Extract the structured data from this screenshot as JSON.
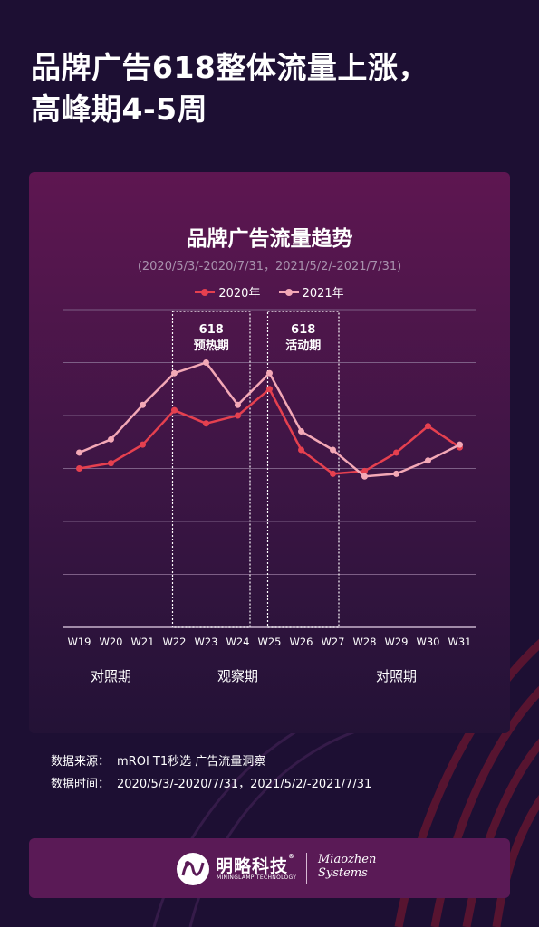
{
  "headline": {
    "line1": "品牌广告618整体流量上涨，",
    "line2": "高峰期4-5周"
  },
  "colors": {
    "series_2020": "#e5404f",
    "series_2021": "#f3a8b6",
    "grid": "#7d5f86",
    "highlight_box": "#ffffff"
  },
  "chart_data": {
    "type": "line",
    "title": "品牌广告流量趋势",
    "subtitle": "(2020/5/3/-2020/7/31，2021/5/2/-2021/7/31)",
    "categories": [
      "W19",
      "W20",
      "W21",
      "W22",
      "W23",
      "W24",
      "W25",
      "W26",
      "W27",
      "W28",
      "W29",
      "W30",
      "W31"
    ],
    "series": [
      {
        "name": "2020年",
        "values": [
          3.0,
          3.1,
          3.45,
          4.1,
          3.85,
          4.0,
          4.5,
          3.35,
          2.9,
          2.95,
          3.3,
          3.8,
          3.4
        ]
      },
      {
        "name": "2021年",
        "values": [
          3.3,
          3.55,
          4.2,
          4.8,
          5.0,
          4.2,
          4.8,
          3.7,
          3.35,
          2.85,
          2.9,
          3.15,
          3.45
        ]
      }
    ],
    "ylim": [
      0,
      6
    ],
    "grid": true,
    "y_tick_labels_shown": false,
    "legend_position": "top-center",
    "highlight_periods": [
      {
        "label": "618",
        "sublabel": "预热期",
        "from": "W22",
        "to": "W24"
      },
      {
        "label": "618",
        "sublabel": "活动期",
        "from": "W25",
        "to": "W26"
      }
    ],
    "period_groups": [
      {
        "label": "对照期",
        "from": "W19",
        "to": "W21"
      },
      {
        "label": "观察期",
        "from": "W22",
        "to": "W26"
      },
      {
        "label": "对照期",
        "from": "W27",
        "to": "W31"
      }
    ]
  },
  "footer": {
    "source_label": "数据来源：",
    "source_value": "mROI T1秒选  广告流量洞察",
    "time_label": "数据时间：",
    "time_value": "2020/5/3/-2020/7/31，2021/5/2/-2021/7/31"
  },
  "brand": {
    "cn_name": "明略科技",
    "registered": "®",
    "en_name": "MININGLAMP TECHNOLOGY",
    "partner_line1": "Miaozhen",
    "partner_line2": "Systems"
  }
}
